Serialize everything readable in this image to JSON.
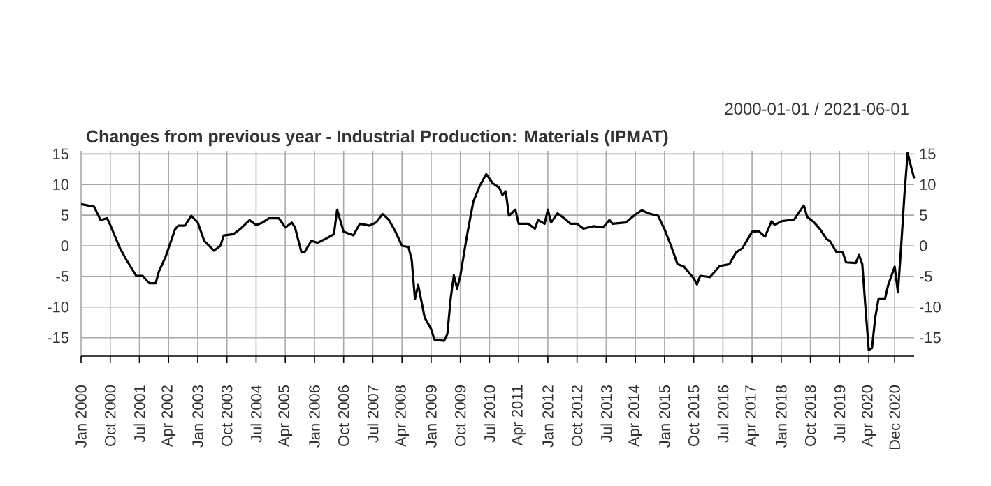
{
  "chart_data": {
    "type": "line",
    "title": "Changes from previous year - Industrial Production: Materials (IPMAT)",
    "subtitle": "2000-01-01 / 2021-06-01",
    "x": [
      "2000-01",
      "2000-05",
      "2000-07",
      "2000-09",
      "2000-10",
      "2001-01",
      "2001-03",
      "2001-06",
      "2001-08",
      "2001-10",
      "2001-12",
      "2002-01",
      "2002-03",
      "2002-06",
      "2002-07",
      "2002-09",
      "2002-11",
      "2003-01",
      "2003-03",
      "2003-06",
      "2003-08",
      "2003-09",
      "2003-12",
      "2004-02",
      "2004-05",
      "2004-07",
      "2004-09",
      "2004-11",
      "2005-02",
      "2005-04",
      "2005-06",
      "2005-07",
      "2005-09",
      "2005-10",
      "2005-12",
      "2006-02",
      "2006-05",
      "2006-07",
      "2006-08",
      "2006-10",
      "2007-01",
      "2007-03",
      "2007-06",
      "2007-08",
      "2007-10",
      "2007-12",
      "2008-02",
      "2008-04",
      "2008-06",
      "2008-07",
      "2008-08",
      "2008-09",
      "2008-11",
      "2009-01",
      "2009-02",
      "2009-05",
      "2009-06",
      "2009-07",
      "2009-08",
      "2009-09",
      "2009-10",
      "2009-12",
      "2010-02",
      "2010-04",
      "2010-06",
      "2010-08",
      "2010-10",
      "2010-11",
      "2010-12",
      "2011-01",
      "2011-03",
      "2011-04",
      "2011-07",
      "2011-09",
      "2011-10",
      "2011-12",
      "2012-01",
      "2012-02",
      "2012-04",
      "2012-06",
      "2012-08",
      "2012-10",
      "2012-12",
      "2013-03",
      "2013-06",
      "2013-08",
      "2013-09",
      "2014-01",
      "2014-04",
      "2014-06",
      "2014-08",
      "2014-11",
      "2015-01",
      "2015-03",
      "2015-05",
      "2015-07",
      "2015-10",
      "2015-11",
      "2015-12",
      "2016-03",
      "2016-06",
      "2016-09",
      "2016-11",
      "2017-01",
      "2017-04",
      "2017-06",
      "2017-08",
      "2017-10",
      "2017-11",
      "2018-01",
      "2018-05",
      "2018-06",
      "2018-08",
      "2018-09",
      "2018-11",
      "2019-01",
      "2019-03",
      "2019-04",
      "2019-06",
      "2019-08",
      "2019-09",
      "2019-12",
      "2020-01",
      "2020-02",
      "2020-03",
      "2020-04",
      "2020-05",
      "2020-06",
      "2020-07",
      "2020-09",
      "2020-10",
      "2020-11",
      "2020-12",
      "2021-01",
      "2021-02",
      "2021-03",
      "2021-04",
      "2021-05",
      "2021-06"
    ],
    "series": [
      {
        "color": "#000000",
        "values": [
          6.8,
          6.4,
          4.2,
          4.5,
          3.4,
          -0.4,
          -2.3,
          -4.9,
          -4.9,
          -6.1,
          -6.1,
          -4.2,
          -1.9,
          2.7,
          3.3,
          3.3,
          4.9,
          3.8,
          0.8,
          -0.8,
          0,
          1.7,
          1.9,
          2.7,
          4.2,
          3.4,
          3.8,
          4.5,
          4.5,
          3.0,
          3.8,
          3.0,
          -1.1,
          -1.0,
          0.8,
          0.5,
          1.3,
          1.9,
          5.9,
          2.3,
          1.7,
          3.6,
          3.3,
          3.8,
          5.2,
          4.2,
          2.3,
          0,
          -0.2,
          -2.3,
          -8.7,
          -6.4,
          -11.7,
          -13.6,
          -15.3,
          -15.5,
          -14.4,
          -8.7,
          -4.8,
          -7.0,
          -4.9,
          1.5,
          7.2,
          9.8,
          11.7,
          10.2,
          9.5,
          8.3,
          8.9,
          4.9,
          5.9,
          3.6,
          3.6,
          2.8,
          4.2,
          3.6,
          5.9,
          3.8,
          5.3,
          4.5,
          3.6,
          3.6,
          2.8,
          3.2,
          3.0,
          4.2,
          3.6,
          3.8,
          5.1,
          5.8,
          5.3,
          4.9,
          2.7,
          0,
          -3.0,
          -3.4,
          -5.3,
          -6.3,
          -4.9,
          -5.1,
          -3.3,
          -3.0,
          -1.1,
          -0.4,
          2.3,
          2.4,
          1.5,
          4.0,
          3.4,
          4.0,
          4.3,
          5.1,
          6.6,
          4.7,
          3.9,
          2.7,
          1.1,
          0.8,
          -1.0,
          -1.1,
          -2.7,
          -2.8,
          -1.5,
          -3.0,
          -10.2,
          -17.0,
          -16.7,
          -11.7,
          -8.7,
          -8.7,
          -6.4,
          -4.9,
          -3.4,
          -7.6,
          0,
          8.3,
          15.2,
          13.0,
          11.0
        ]
      }
    ],
    "xlim": [
      "2000-01",
      "2021-06"
    ],
    "xticks": [
      {
        "value": "2000-01",
        "label": "Jan 2000"
      },
      {
        "value": "2000-10",
        "label": "Oct 2000"
      },
      {
        "value": "2001-07",
        "label": "Jul 2001"
      },
      {
        "value": "2002-04",
        "label": "Apr 2002"
      },
      {
        "value": "2003-01",
        "label": "Jan 2003"
      },
      {
        "value": "2003-10",
        "label": "Oct 2003"
      },
      {
        "value": "2004-07",
        "label": "Jul 2004"
      },
      {
        "value": "2005-04",
        "label": "Apr 2005"
      },
      {
        "value": "2006-01",
        "label": "Jan 2006"
      },
      {
        "value": "2006-10",
        "label": "Oct 2006"
      },
      {
        "value": "2007-07",
        "label": "Jul 2007"
      },
      {
        "value": "2008-04",
        "label": "Apr 2008"
      },
      {
        "value": "2009-01",
        "label": "Jan 2009"
      },
      {
        "value": "2009-10",
        "label": "Oct 2009"
      },
      {
        "value": "2010-07",
        "label": "Jul 2010"
      },
      {
        "value": "2011-04",
        "label": "Apr 2011"
      },
      {
        "value": "2012-01",
        "label": "Jan 2012"
      },
      {
        "value": "2012-10",
        "label": "Oct 2012"
      },
      {
        "value": "2013-07",
        "label": "Jul 2013"
      },
      {
        "value": "2014-04",
        "label": "Apr 2014"
      },
      {
        "value": "2015-01",
        "label": "Jan 2015"
      },
      {
        "value": "2015-10",
        "label": "Oct 2015"
      },
      {
        "value": "2016-07",
        "label": "Jul 2016"
      },
      {
        "value": "2017-04",
        "label": "Apr 2017"
      },
      {
        "value": "2018-01",
        "label": "Jan 2018"
      },
      {
        "value": "2018-10",
        "label": "Oct 2018"
      },
      {
        "value": "2019-07",
        "label": "Jul 2019"
      },
      {
        "value": "2020-04",
        "label": "Apr 2020"
      },
      {
        "value": "2020-12",
        "label": "Dec 2020"
      }
    ],
    "ylim": [
      -18,
      15.5
    ],
    "yticks": [
      -15,
      -10,
      -5,
      0,
      5,
      10,
      15
    ],
    "y2lim": [
      -18,
      15.5
    ],
    "y2ticks": [
      -15,
      -10,
      -5,
      0,
      5,
      10,
      15
    ],
    "grid": true,
    "marker": "none",
    "line_style": "solid"
  }
}
